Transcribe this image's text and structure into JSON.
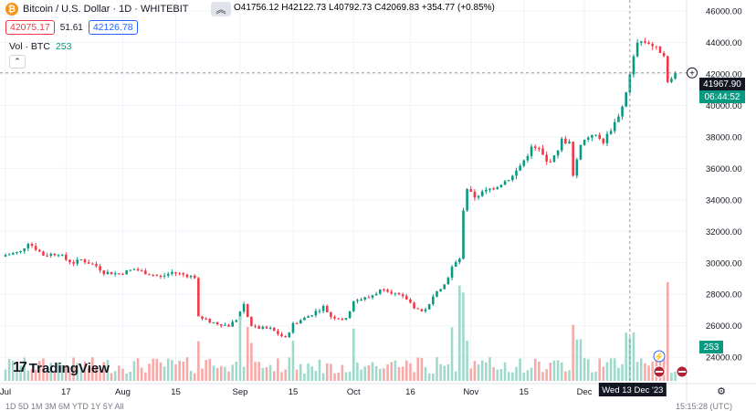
{
  "header": {
    "coin_glyph": "₿",
    "title": "Bitcoin / U.S. Dollar · 1D · WHITEBIT",
    "collapse_glyph": "︽",
    "ohlc": {
      "o_label": "O",
      "o": "41756.12",
      "h_label": "H",
      "h": "42122.73",
      "l_label": "L",
      "l": "40792.73",
      "c_label": "C",
      "c": "42069.83",
      "change": "+354.77 (+0.85%)"
    },
    "bid": "42075.17",
    "spread": "51.61",
    "ask": "42126.78",
    "vol_label": "Vol · BTC",
    "vol_value": "253"
  },
  "branding": {
    "logo_text": "TradingView",
    "logo_mark": "17"
  },
  "colors": {
    "up": "#089981",
    "down": "#f23645",
    "vol_up": "#9fd9cb",
    "vol_down": "#f7a9a7",
    "grid": "#f0f3fa",
    "text": "#131722",
    "axis_text": "#131722"
  },
  "price_tags": {
    "current": "41967.90",
    "countdown": "06:44:52",
    "volume": "253"
  },
  "crosshair_label": "Wed 13 Dec '23",
  "bottom_bar_text": "1D  5D  1M  3M  6M  YTD  1Y  5Y  All",
  "clock_text": "15:15:28 (UTC)",
  "chart_data": {
    "type": "candlestick",
    "title": "Bitcoin / U.S. Dollar · 1D · WHITEBIT",
    "xlabel": "",
    "ylabel": "",
    "ylim": [
      22500,
      46700
    ],
    "y_ticks": [
      "24000.00",
      "26000.00",
      "28000.00",
      "30000.00",
      "32000.00",
      "34000.00",
      "36000.00",
      "38000.00",
      "40000.00",
      "42000.00",
      "44000.00",
      "46000.00"
    ],
    "x_ticks": [
      "Jul",
      "17",
      "Aug",
      "15",
      "Sep",
      "15",
      "Oct",
      "16",
      "Nov",
      "15",
      "Dec"
    ],
    "x_tick_days": [
      0,
      16,
      31,
      45,
      62,
      76,
      92,
      107,
      123,
      137,
      153
    ],
    "start_date": "2023-07-01",
    "crosshair_day": 165,
    "crosshair_price": 42070,
    "anchors": [
      [
        0,
        30500
      ],
      [
        4,
        30700
      ],
      [
        6,
        31300
      ],
      [
        10,
        30500
      ],
      [
        14,
        30600
      ],
      [
        16,
        30200
      ],
      [
        18,
        30000
      ],
      [
        20,
        30200
      ],
      [
        24,
        29800
      ],
      [
        26,
        29400
      ],
      [
        30,
        29300
      ],
      [
        34,
        29600
      ],
      [
        38,
        29300
      ],
      [
        41,
        29100
      ],
      [
        44,
        29400
      ],
      [
        48,
        29200
      ],
      [
        50,
        29100
      ],
      [
        51,
        26500
      ],
      [
        55,
        26200
      ],
      [
        59,
        26000
      ],
      [
        61,
        26400
      ],
      [
        63,
        27400
      ],
      [
        65,
        25900
      ],
      [
        70,
        25800
      ],
      [
        74,
        25200
      ],
      [
        76,
        26100
      ],
      [
        80,
        26600
      ],
      [
        84,
        27200
      ],
      [
        86,
        26600
      ],
      [
        90,
        26400
      ],
      [
        92,
        27600
      ],
      [
        96,
        27800
      ],
      [
        100,
        28400
      ],
      [
        104,
        27900
      ],
      [
        106,
        27700
      ],
      [
        108,
        27200
      ],
      [
        110,
        26900
      ],
      [
        112,
        27300
      ],
      [
        114,
        28300
      ],
      [
        116,
        28600
      ],
      [
        118,
        29700
      ],
      [
        120,
        30300
      ],
      [
        121,
        33200
      ],
      [
        122,
        34600
      ],
      [
        124,
        34200
      ],
      [
        128,
        34700
      ],
      [
        130,
        34900
      ],
      [
        134,
        35500
      ],
      [
        137,
        36500
      ],
      [
        139,
        37300
      ],
      [
        141,
        37200
      ],
      [
        143,
        36400
      ],
      [
        145,
        36700
      ],
      [
        147,
        37800
      ],
      [
        149,
        37600
      ],
      [
        150,
        35500
      ],
      [
        152,
        37600
      ],
      [
        155,
        38200
      ],
      [
        158,
        37700
      ],
      [
        161,
        38900
      ],
      [
        163,
        39900
      ],
      [
        165,
        41900
      ],
      [
        167,
        44100
      ],
      [
        170,
        44000
      ],
      [
        172,
        43600
      ],
      [
        174,
        43300
      ],
      [
        175,
        41400
      ],
      [
        177,
        41967
      ]
    ],
    "vol_ylim": [
      0,
      3000
    ],
    "volume_note": "Vol · BTC",
    "vol_last": 253
  }
}
